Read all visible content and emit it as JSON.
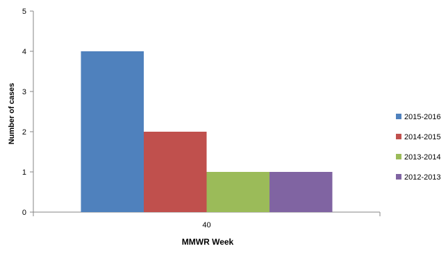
{
  "chart_data": {
    "type": "bar",
    "categories": [
      "40"
    ],
    "series": [
      {
        "name": "2015-2016",
        "values": [
          4
        ],
        "color": "#4F81BD"
      },
      {
        "name": "2014-2015",
        "values": [
          2
        ],
        "color": "#C0504D"
      },
      {
        "name": "2013-2014",
        "values": [
          1
        ],
        "color": "#9BBB59"
      },
      {
        "name": "2012-2013",
        "values": [
          1
        ],
        "color": "#8064A2"
      }
    ],
    "title": "",
    "xlabel": "MMWR Week",
    "ylabel": "Number of cases",
    "ylim": [
      0,
      5
    ],
    "yticks": [
      "0",
      "1",
      "2",
      "3",
      "4",
      "5"
    ],
    "grid": false,
    "legend_position": "right"
  }
}
